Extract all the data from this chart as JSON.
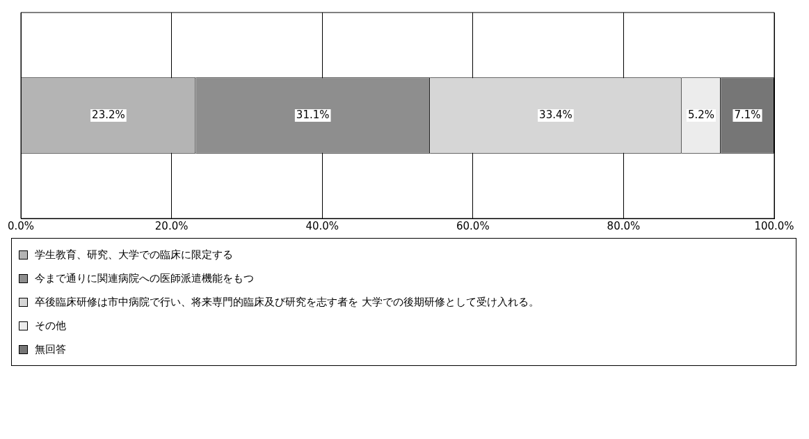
{
  "chart_data": {
    "type": "bar",
    "orientation": "horizontal",
    "stacked": true,
    "categories": [
      null
    ],
    "series": [
      {
        "name": "学生教育、研究、大学での臨床に限定する",
        "color": "#b4b4b4",
        "values": [
          23.2
        ],
        "value_labels": [
          "23.2%"
        ]
      },
      {
        "name": "今まで通りに関連病院への医師派遣機能をもつ",
        "color": "#8e8e8e",
        "values": [
          31.1
        ],
        "value_labels": [
          "31.1%"
        ]
      },
      {
        "name": "卒後臨床研修は市中病院で行い、将来専門的臨床及び研究を志す者を 大学での後期研修として受け入れる。",
        "color": "#d6d6d6",
        "values": [
          33.4
        ],
        "value_labels": [
          "33.4%"
        ]
      },
      {
        "name": "その他",
        "color": "#ececec",
        "values": [
          5.2
        ],
        "value_labels": [
          "5.2%"
        ]
      },
      {
        "name": "無回答",
        "color": "#767676",
        "values": [
          7.1
        ],
        "value_labels": [
          "7.1%"
        ]
      }
    ],
    "xlim": [
      0,
      100
    ],
    "xticks": [
      {
        "value": 0,
        "label": "0.0%"
      },
      {
        "value": 20,
        "label": "20.0%"
      },
      {
        "value": 40,
        "label": "40.0%"
      },
      {
        "value": 60,
        "label": "60.0%"
      },
      {
        "value": 80,
        "label": "80.0%"
      },
      {
        "value": 100,
        "label": "100.0%"
      }
    ],
    "grid": "x",
    "legend": "bottom"
  }
}
